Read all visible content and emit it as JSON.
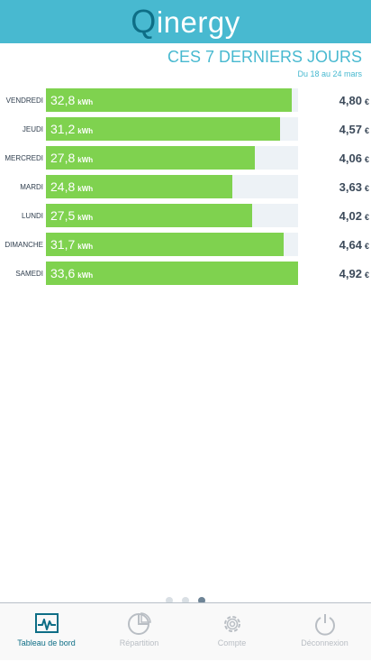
{
  "app": {
    "logo_q": "Q",
    "logo_rest": "inergy"
  },
  "section": {
    "title": "CES 7 DERNIERS JOURS",
    "subtitle": "Du 18 au 24 mars"
  },
  "units": {
    "energy": "kWh",
    "currency": "€"
  },
  "chart_data": {
    "type": "bar",
    "orientation": "horizontal",
    "title": "CES 7 DERNIERS JOURS",
    "subtitle": "Du 18 au 24 mars",
    "categories": [
      "VENDREDI",
      "JEUDI",
      "MERCREDI",
      "MARDI",
      "LUNDI",
      "DIMANCHE",
      "SAMEDI"
    ],
    "series": [
      {
        "name": "kWh",
        "values": [
          32.8,
          31.2,
          27.8,
          24.8,
          27.5,
          31.7,
          33.6
        ]
      },
      {
        "name": "€",
        "values": [
          4.8,
          4.57,
          4.06,
          3.63,
          4.02,
          4.64,
          4.92
        ]
      }
    ],
    "xlim": [
      0,
      33.6
    ]
  },
  "days": [
    {
      "day": "VENDREDI",
      "kwh": "32,8",
      "kwh_value": 32.8,
      "price": "4,80"
    },
    {
      "day": "JEUDI",
      "kwh": "31,2",
      "kwh_value": 31.2,
      "price": "4,57"
    },
    {
      "day": "MERCREDI",
      "kwh": "27,8",
      "kwh_value": 27.8,
      "price": "4,06"
    },
    {
      "day": "MARDI",
      "kwh": "24,8",
      "kwh_value": 24.8,
      "price": "3,63"
    },
    {
      "day": "LUNDI",
      "kwh": "27,5",
      "kwh_value": 27.5,
      "price": "4,02"
    },
    {
      "day": "DIMANCHE",
      "kwh": "31,7",
      "kwh_value": 31.7,
      "price": "4,64"
    },
    {
      "day": "SAMEDI",
      "kwh": "33,6",
      "kwh_value": 33.6,
      "price": "4,92"
    }
  ],
  "pager": {
    "pages": 3,
    "current": 3
  },
  "tabs": [
    {
      "label": "Tableau de bord",
      "icon": "chart-icon",
      "active": true
    },
    {
      "label": "Répartition",
      "icon": "pie-chart-icon",
      "active": false
    },
    {
      "label": "Compte",
      "icon": "gear-icon",
      "active": false
    },
    {
      "label": "Déconnexion",
      "icon": "power-icon",
      "active": false
    }
  ],
  "colors": {
    "header": "#48b9d0",
    "logo_accent": "#0e6e86",
    "bar": "#7fd24f",
    "track": "#edf2f6",
    "active_tab": "#0e6e86",
    "inactive_tab": "#b9bec4"
  }
}
